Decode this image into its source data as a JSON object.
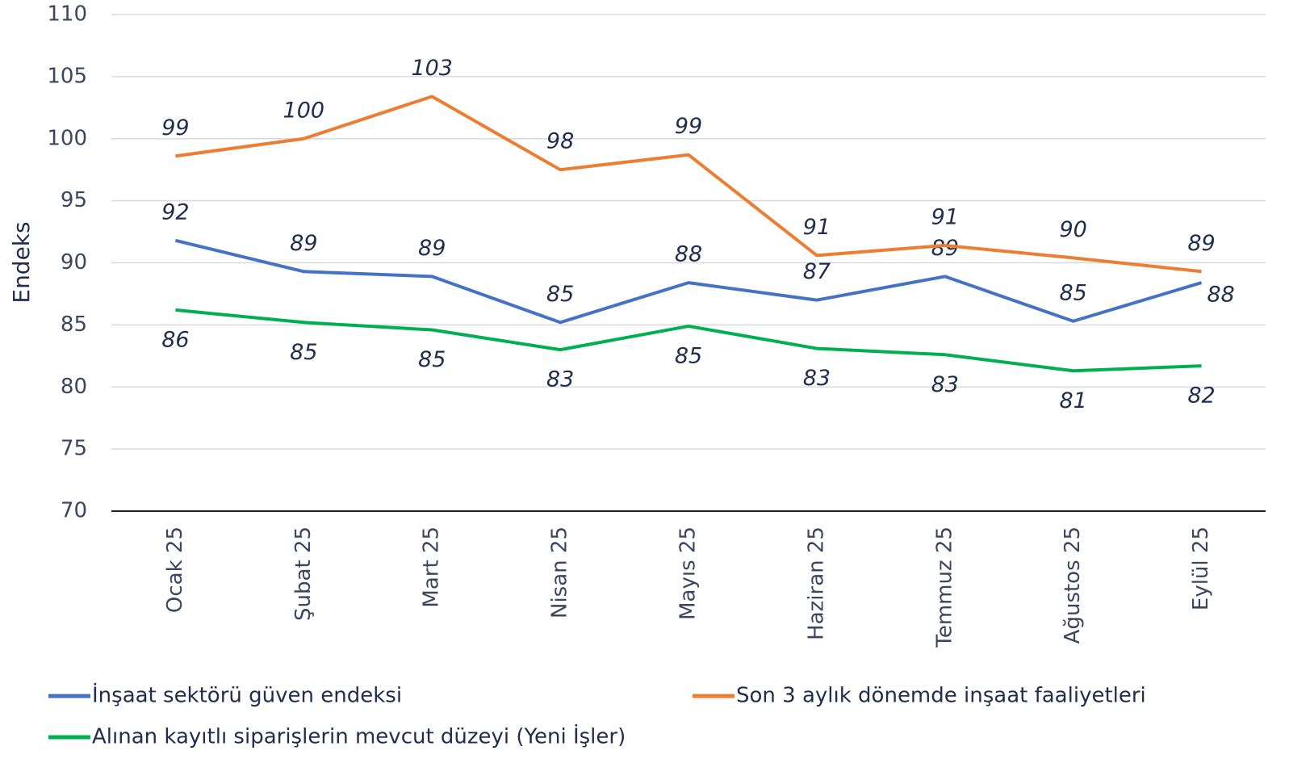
{
  "chart_data": {
    "type": "line",
    "y_label": "Endeks",
    "categories": [
      "Ocak 25",
      "Şubat 25",
      "Mart 25",
      "Nisan 25",
      "Mayıs 25",
      "Haziran 25",
      "Temmuz 25",
      "Ağustos 25",
      "Eylül 25"
    ],
    "series": [
      {
        "name": "İnşaat sektörü güven endeksi",
        "color": "#4472c4",
        "values": [
          91.8,
          89.3,
          88.9,
          85.2,
          88.4,
          87.0,
          88.9,
          85.3,
          88.4
        ],
        "value_labels": [
          "92",
          "89",
          "89",
          "85",
          "88",
          "87",
          "89",
          "85",
          "88"
        ]
      },
      {
        "name": "Son 3 aylık dönemde inşaat faaliyetleri",
        "color": "#ed7d31",
        "values": [
          98.6,
          100.0,
          103.4,
          97.5,
          98.7,
          90.6,
          91.4,
          90.4,
          89.3
        ],
        "value_labels": [
          "99",
          "100",
          "103",
          "98",
          "99",
          "91",
          "91",
          "90",
          "89"
        ]
      },
      {
        "name": "Alınan kayıtlı siparişlerin mevcut düzeyi (Yeni İşler)",
        "color": "#00b050",
        "values": [
          86.2,
          85.2,
          84.6,
          83.0,
          84.9,
          83.1,
          82.6,
          81.3,
          81.7
        ],
        "value_labels": [
          "86",
          "85",
          "85",
          "83",
          "85",
          "83",
          "83",
          "81",
          "82"
        ]
      }
    ],
    "ylim": [
      70,
      110
    ],
    "yticks": [
      70,
      75,
      80,
      85,
      90,
      95,
      100,
      105,
      110
    ],
    "grid": true
  }
}
